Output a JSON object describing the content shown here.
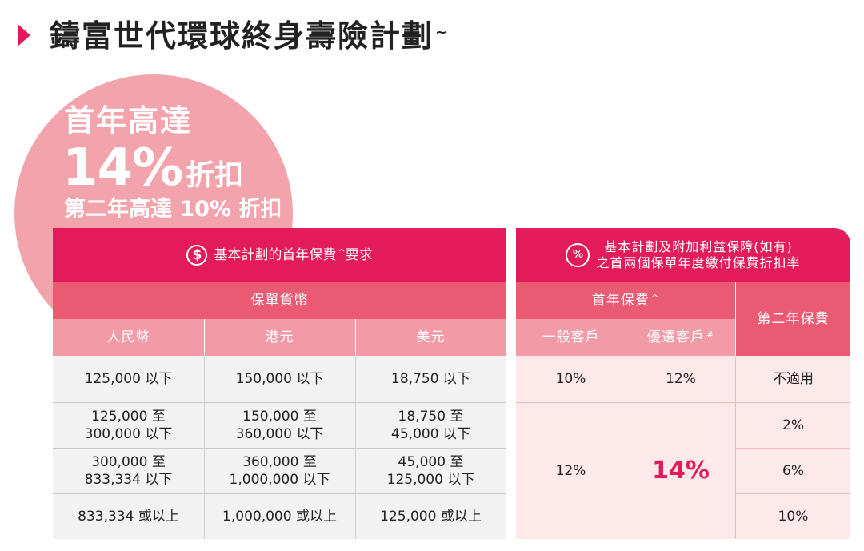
{
  "title": {
    "text": "鑄富世代環球終身壽險計劃",
    "mark": "~"
  },
  "promo": {
    "line1": "首年高達",
    "big": "14%",
    "suffix": "折扣",
    "line3": "第二年高達 10% 折扣"
  },
  "left_table": {
    "header": "基本計劃的首年保費",
    "header_mark": "^",
    "header_tail": "要求",
    "currency_header": "保單貨幣",
    "columns": [
      "人民幣",
      "港元",
      "美元"
    ],
    "rows": [
      [
        "125,000 以下",
        "150,000 以下",
        "18,750 以下"
      ],
      [
        [
          "125,000 至",
          "300,000 以下"
        ],
        [
          "150,000 至",
          "360,000 以下"
        ],
        [
          "18,750 至",
          "45,000 以下"
        ]
      ],
      [
        [
          "300,000 至",
          "833,334 以下"
        ],
        [
          "360,000 至",
          "1,000,000 以下"
        ],
        [
          "45,000 至",
          "125,000 以下"
        ]
      ],
      [
        "833,334 或以上",
        "1,000,000 或以上",
        "125,000 或以上"
      ]
    ]
  },
  "right_table": {
    "header_line1": "基本計劃及附加利益保障(如有)",
    "header_line2": "之首兩個保單年度繳付保費折扣率",
    "first_year": "首年保費",
    "first_year_mark": "^",
    "second_year": "第二年保費",
    "general": "一般客戶",
    "preferred": "優選客戶",
    "preferred_mark": "#",
    "row1": {
      "general": "10%",
      "preferred": "12%",
      "second": "不適用"
    },
    "merged_general": "12%",
    "merged_preferred": "14%",
    "second_year_rates": [
      "2%",
      "6%",
      "10%"
    ]
  },
  "icons": {
    "dollar": "$",
    "percent": "%"
  },
  "colors": {
    "accent": "#e41b5b",
    "mid": "#ea5a72",
    "light": "#f29aa6",
    "circle": "#f3a3ab"
  }
}
